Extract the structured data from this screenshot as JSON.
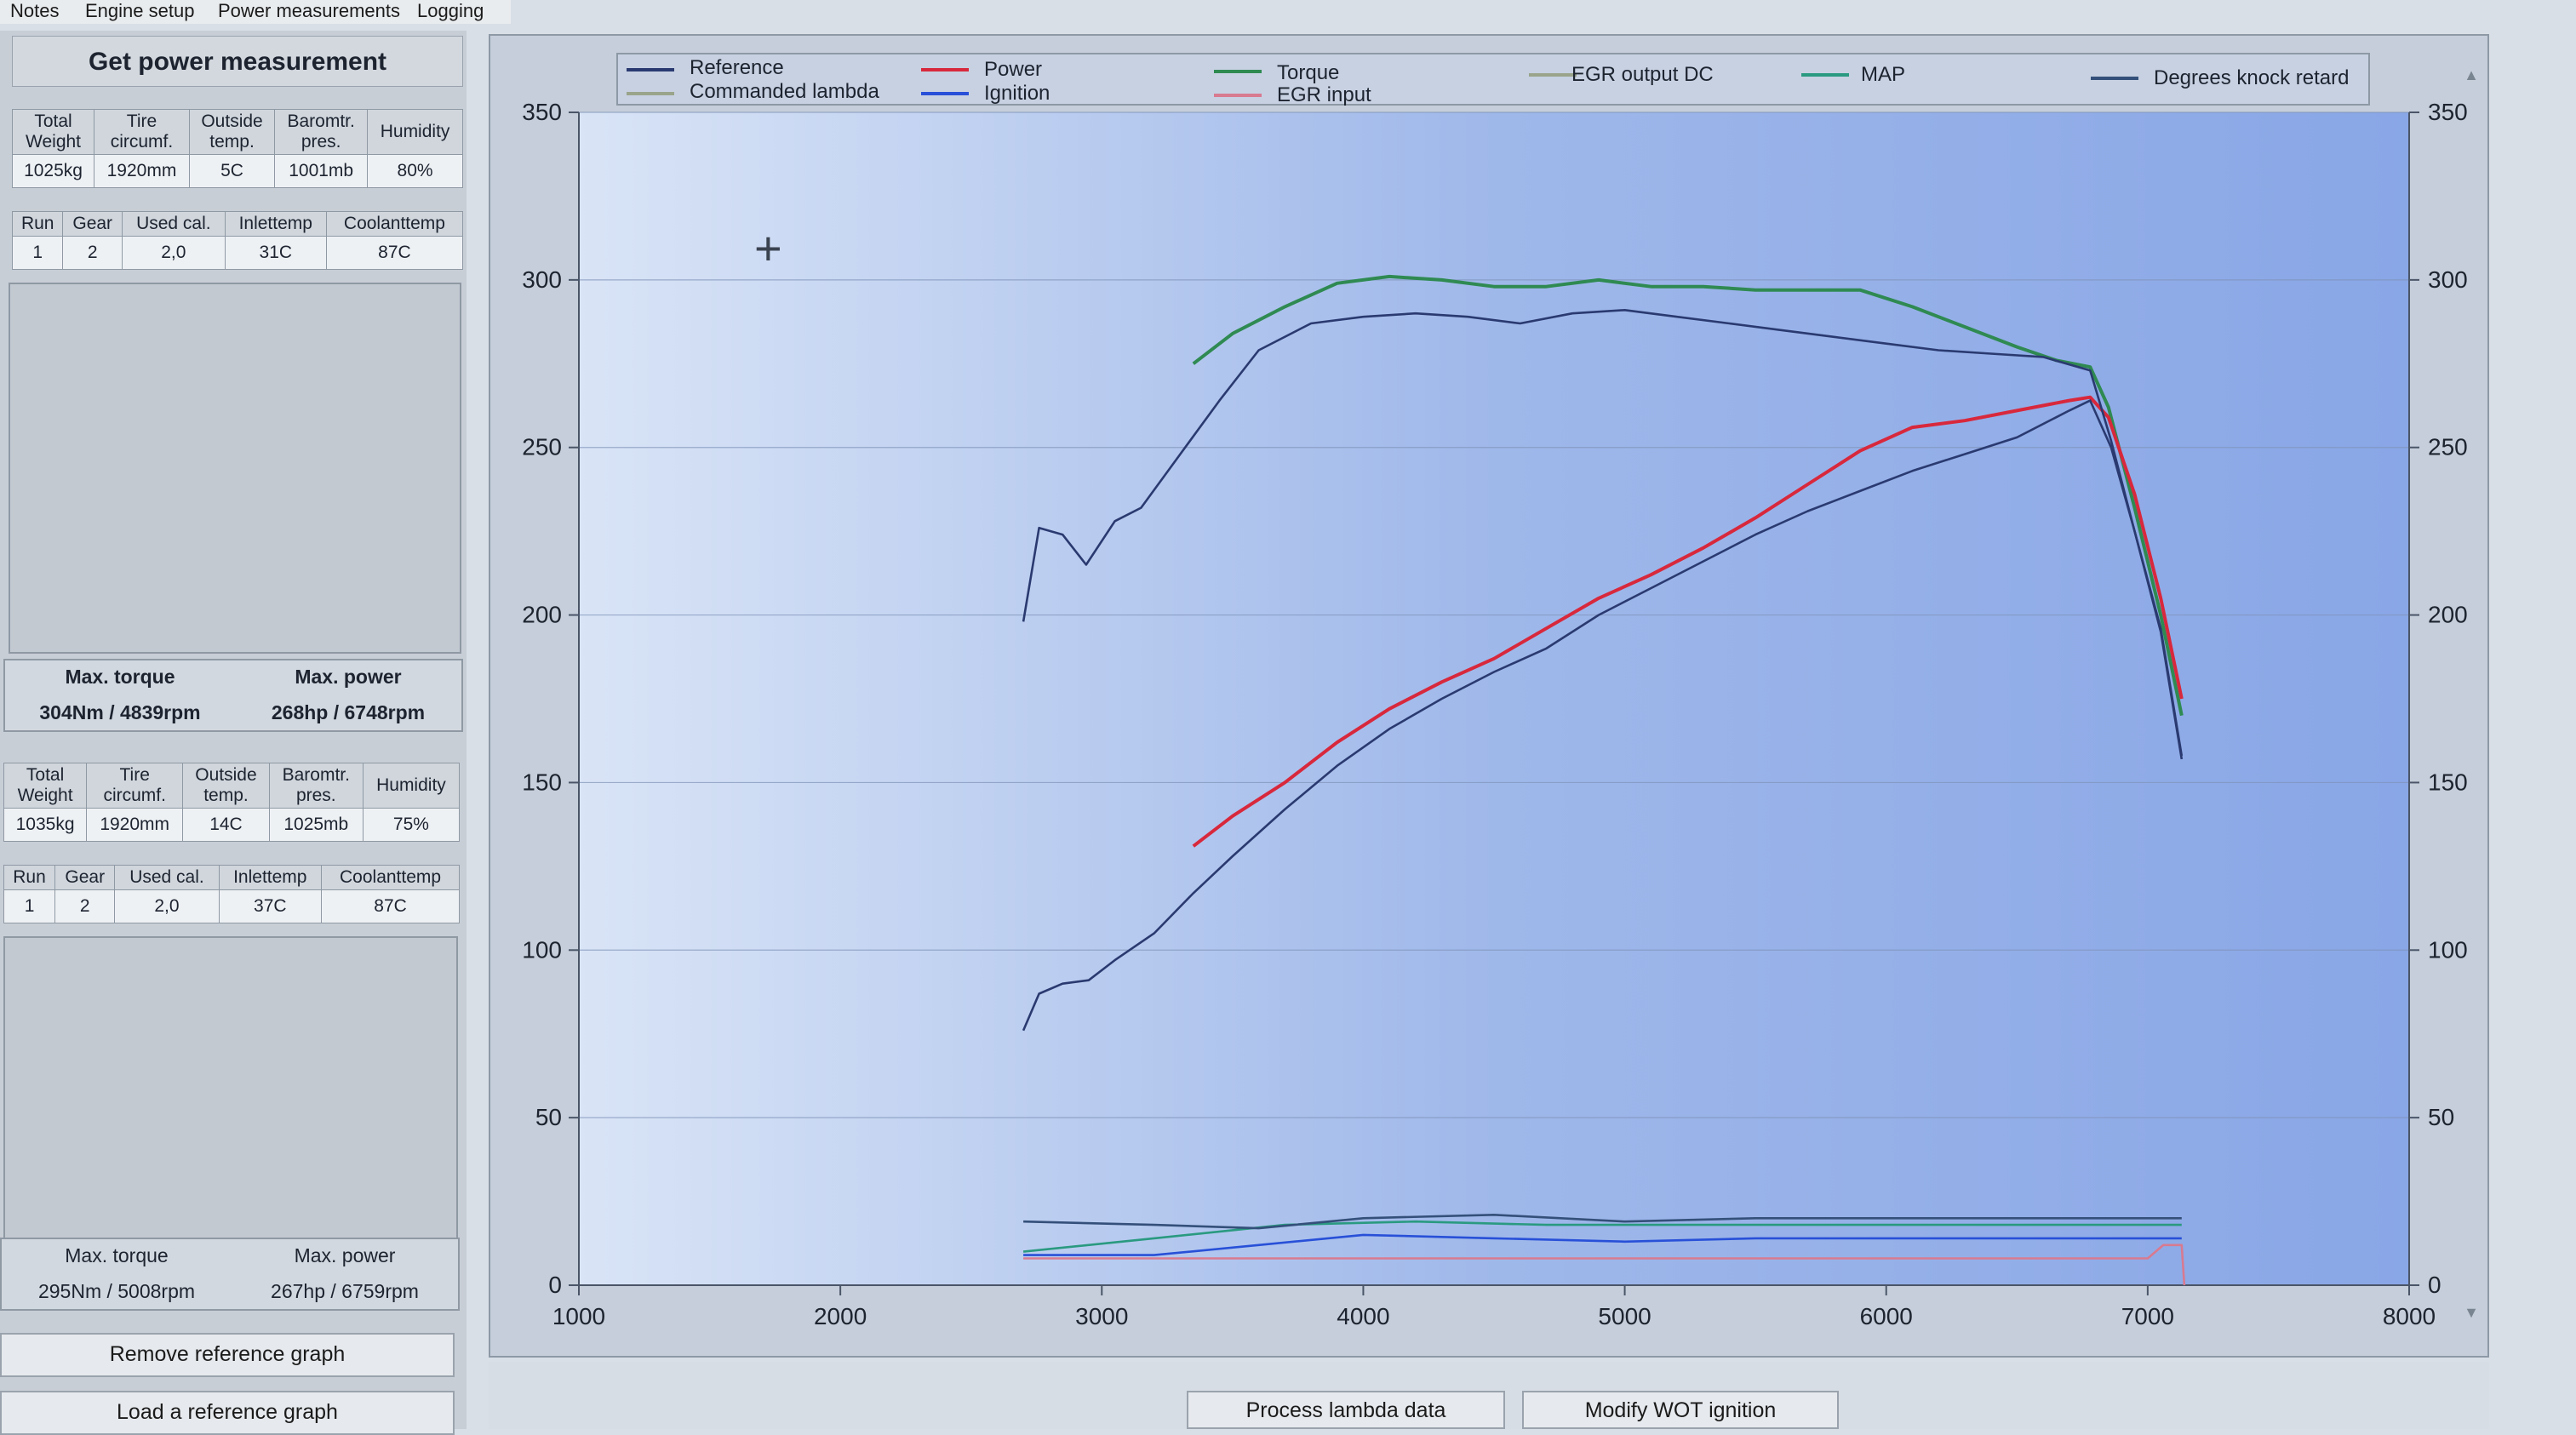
{
  "menu": {
    "items": [
      "Notes",
      "Engine setup",
      "Power measurements",
      "Logging"
    ]
  },
  "panel": {
    "title": "Get power measurement",
    "measurement": {
      "env_headers": [
        "Total\nWeight",
        "Tire\ncircumf.",
        "Outside\ntemp.",
        "Baromtr.\npres.",
        "Humidity"
      ],
      "env_values": [
        "1025kg",
        "1920mm",
        "5C",
        "1001mb",
        "80%"
      ],
      "run_headers": [
        "Run",
        "Gear",
        "Used cal.",
        "Inlettemp",
        "Coolanttemp"
      ],
      "run_values": [
        "1",
        "2",
        "2,0",
        "31C",
        "87C"
      ],
      "max_torque_label": "Max. torque",
      "max_power_label": "Max. power",
      "max_torque_value": "304Nm / 4839rpm",
      "max_power_value": "268hp / 6748rpm"
    },
    "reference": {
      "env_headers": [
        "Total\nWeight",
        "Tire\ncircumf.",
        "Outside\ntemp.",
        "Baromtr.\npres.",
        "Humidity"
      ],
      "env_values": [
        "1035kg",
        "1920mm",
        "14C",
        "1025mb",
        "75%"
      ],
      "run_headers": [
        "Run",
        "Gear",
        "Used cal.",
        "Inlettemp",
        "Coolanttemp"
      ],
      "run_values": [
        "1",
        "2",
        "2,0",
        "37C",
        "87C"
      ],
      "max_torque_label": "Max. torque",
      "max_power_label": "Max. power",
      "max_torque_value": "295Nm / 5008rpm",
      "max_power_value": "267hp / 6759rpm"
    },
    "buttons": {
      "remove_reference": "Remove reference graph",
      "load_reference": "Load a reference graph"
    }
  },
  "bottom_buttons": {
    "process_lambda": "Process lambda data",
    "modify_wot": "Modify WOT ignition"
  },
  "colors": {
    "power": "#d8283c",
    "torque": "#2f8a52",
    "reference": "#2a3a70",
    "ignition": "#2850d8",
    "egr_input": "#d87a90",
    "egr_output": "#9aa48a",
    "map": "#2a9a80",
    "knock": "#34507a",
    "lambda": "#9aa48a"
  },
  "legend": {
    "items": [
      {
        "label": "Reference",
        "color_key": "reference"
      },
      {
        "label": "Commanded lambda",
        "color_key": "lambda"
      },
      {
        "label": "Power",
        "color_key": "power"
      },
      {
        "label": "Ignition",
        "color_key": "ignition"
      },
      {
        "label": "Torque",
        "color_key": "torque"
      },
      {
        "label": "EGR input",
        "color_key": "egr_input"
      },
      {
        "label": "EGR output DC",
        "color_key": "egr_output"
      },
      {
        "label": "MAP",
        "color_key": "map"
      },
      {
        "label": "Degrees knock retard",
        "color_key": "knock"
      }
    ]
  },
  "chart_data": {
    "type": "line",
    "xlim": [
      1000,
      8000
    ],
    "ylim": [
      0,
      350
    ],
    "x_ticks": [
      1000,
      2000,
      3000,
      4000,
      5000,
      6000,
      7000,
      8000
    ],
    "y_ticks": [
      0,
      50,
      100,
      150,
      200,
      250,
      300,
      350
    ],
    "grid": true,
    "legend_position": "top",
    "series": [
      {
        "name": "Torque",
        "color_key": "torque",
        "points": [
          [
            3350,
            275
          ],
          [
            3500,
            284
          ],
          [
            3700,
            292
          ],
          [
            3900,
            299
          ],
          [
            4100,
            301
          ],
          [
            4300,
            300
          ],
          [
            4500,
            298
          ],
          [
            4700,
            298
          ],
          [
            4900,
            300
          ],
          [
            5100,
            298
          ],
          [
            5300,
            298
          ],
          [
            5500,
            297
          ],
          [
            5700,
            297
          ],
          [
            5900,
            297
          ],
          [
            6100,
            292
          ],
          [
            6300,
            286
          ],
          [
            6500,
            280
          ],
          [
            6650,
            276
          ],
          [
            6780,
            274
          ],
          [
            6850,
            262
          ],
          [
            6950,
            232
          ],
          [
            7050,
            200
          ],
          [
            7130,
            170
          ]
        ]
      },
      {
        "name": "Power",
        "color_key": "power",
        "points": [
          [
            3350,
            131
          ],
          [
            3500,
            140
          ],
          [
            3700,
            150
          ],
          [
            3900,
            162
          ],
          [
            4100,
            172
          ],
          [
            4300,
            180
          ],
          [
            4500,
            187
          ],
          [
            4700,
            196
          ],
          [
            4900,
            205
          ],
          [
            5100,
            212
          ],
          [
            5300,
            220
          ],
          [
            5500,
            229
          ],
          [
            5700,
            239
          ],
          [
            5900,
            249
          ],
          [
            6100,
            256
          ],
          [
            6300,
            258
          ],
          [
            6500,
            261
          ],
          [
            6700,
            264
          ],
          [
            6780,
            265
          ],
          [
            6850,
            259
          ],
          [
            6950,
            236
          ],
          [
            7050,
            205
          ],
          [
            7130,
            175
          ]
        ]
      },
      {
        "name": "Reference",
        "color_key": "reference",
        "points": [
          [
            2700,
            198
          ],
          [
            2760,
            226
          ],
          [
            2850,
            224
          ],
          [
            2940,
            215
          ],
          [
            3050,
            228
          ],
          [
            3150,
            232
          ],
          [
            3300,
            248
          ],
          [
            3450,
            264
          ],
          [
            3600,
            279
          ],
          [
            3800,
            287
          ],
          [
            4000,
            289
          ],
          [
            4200,
            290
          ],
          [
            4400,
            289
          ],
          [
            4600,
            287
          ],
          [
            4800,
            290
          ],
          [
            5000,
            291
          ],
          [
            5200,
            289
          ],
          [
            5400,
            287
          ],
          [
            5600,
            285
          ],
          [
            5800,
            283
          ],
          [
            6000,
            281
          ],
          [
            6200,
            279
          ],
          [
            6400,
            278
          ],
          [
            6600,
            277
          ],
          [
            6780,
            273
          ],
          [
            6860,
            252
          ],
          [
            6950,
            225
          ],
          [
            7050,
            196
          ],
          [
            7130,
            158
          ]
        ]
      },
      {
        "name": "Reference",
        "color_key": "reference",
        "points": [
          [
            2700,
            76
          ],
          [
            2760,
            87
          ],
          [
            2850,
            90
          ],
          [
            2950,
            91
          ],
          [
            3050,
            97
          ],
          [
            3200,
            105
          ],
          [
            3350,
            117
          ],
          [
            3500,
            128
          ],
          [
            3700,
            142
          ],
          [
            3900,
            155
          ],
          [
            4100,
            166
          ],
          [
            4300,
            175
          ],
          [
            4500,
            183
          ],
          [
            4700,
            190
          ],
          [
            4900,
            200
          ],
          [
            5100,
            208
          ],
          [
            5300,
            216
          ],
          [
            5500,
            224
          ],
          [
            5700,
            231
          ],
          [
            5900,
            237
          ],
          [
            6100,
            243
          ],
          [
            6300,
            248
          ],
          [
            6500,
            253
          ],
          [
            6700,
            261
          ],
          [
            6780,
            264
          ],
          [
            6860,
            250
          ],
          [
            6950,
            225
          ],
          [
            7050,
            195
          ],
          [
            7130,
            157
          ]
        ]
      },
      {
        "name": "Ignition",
        "color_key": "ignition",
        "points": [
          [
            2700,
            9
          ],
          [
            3200,
            9
          ],
          [
            3600,
            12
          ],
          [
            4000,
            15
          ],
          [
            4500,
            14
          ],
          [
            5000,
            13
          ],
          [
            5500,
            14
          ],
          [
            6000,
            14
          ],
          [
            6500,
            14
          ],
          [
            7130,
            14
          ]
        ]
      },
      {
        "name": "MAP",
        "color_key": "map",
        "points": [
          [
            2700,
            10
          ],
          [
            3200,
            14
          ],
          [
            3700,
            18
          ],
          [
            4200,
            19
          ],
          [
            4700,
            18
          ],
          [
            5200,
            18
          ],
          [
            5700,
            18
          ],
          [
            6200,
            18
          ],
          [
            6700,
            18
          ],
          [
            7130,
            18
          ]
        ]
      },
      {
        "name": "Degrees knock retard",
        "color_key": "knock",
        "points": [
          [
            2700,
            19
          ],
          [
            3200,
            18
          ],
          [
            3600,
            17
          ],
          [
            4000,
            20
          ],
          [
            4500,
            21
          ],
          [
            5000,
            19
          ],
          [
            5500,
            20
          ],
          [
            6000,
            20
          ],
          [
            6500,
            20
          ],
          [
            7130,
            20
          ]
        ]
      },
      {
        "name": "EGR input",
        "color_key": "egr_input",
        "points": [
          [
            2700,
            8
          ],
          [
            3500,
            8
          ],
          [
            4500,
            8
          ],
          [
            5500,
            8
          ],
          [
            6500,
            8
          ],
          [
            7000,
            8
          ],
          [
            7060,
            12
          ],
          [
            7130,
            12
          ],
          [
            7140,
            0
          ]
        ]
      }
    ]
  }
}
